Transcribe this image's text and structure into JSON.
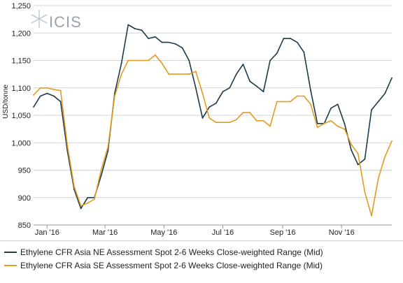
{
  "logo": {
    "text": "ICIS",
    "icon": "icis-sparkle-logo"
  },
  "chart_data": {
    "type": "line",
    "ylabel": "USD/tonne",
    "ylim": [
      850,
      1250
    ],
    "yticks": [
      850,
      900,
      950,
      1000,
      1050,
      1100,
      1150,
      1200,
      1250
    ],
    "ytick_labels": [
      "850",
      "900",
      "950",
      "1,000",
      "1,050",
      "1,100",
      "1,150",
      "1,200",
      "1,250"
    ],
    "x_start": "2015-12-18",
    "x_end": "2016-12-23",
    "xticks": [
      {
        "label": "Jan '16",
        "date": "2016-01-01"
      },
      {
        "label": "Mar '16",
        "date": "2016-03-01"
      },
      {
        "label": "May '16",
        "date": "2016-05-01"
      },
      {
        "label": "Jul '16",
        "date": "2016-07-01"
      },
      {
        "label": "Sep '16",
        "date": "2016-09-01"
      },
      {
        "label": "Nov '16",
        "date": "2016-11-01"
      }
    ],
    "grid": true,
    "legend_position": "bottom",
    "series": [
      {
        "name": "Ethylene CFR Asia NE Assessment Spot 2-6 Weeks Close-weighted Range (Mid)",
        "color": "#1d3a4a",
        "points": [
          [
            "2015-12-18",
            1065
          ],
          [
            "2015-12-25",
            1085
          ],
          [
            "2016-01-01",
            1090
          ],
          [
            "2016-01-08",
            1085
          ],
          [
            "2016-01-15",
            1075
          ],
          [
            "2016-01-22",
            985
          ],
          [
            "2016-01-29",
            915
          ],
          [
            "2016-02-05",
            880
          ],
          [
            "2016-02-12",
            900
          ],
          [
            "2016-02-19",
            900
          ],
          [
            "2016-02-26",
            940
          ],
          [
            "2016-03-04",
            985
          ],
          [
            "2016-03-11",
            1090
          ],
          [
            "2016-03-18",
            1145
          ],
          [
            "2016-03-25",
            1215
          ],
          [
            "2016-04-01",
            1208
          ],
          [
            "2016-04-08",
            1205
          ],
          [
            "2016-04-15",
            1190
          ],
          [
            "2016-04-22",
            1193
          ],
          [
            "2016-04-29",
            1183
          ],
          [
            "2016-05-06",
            1183
          ],
          [
            "2016-05-13",
            1180
          ],
          [
            "2016-05-20",
            1173
          ],
          [
            "2016-05-27",
            1150
          ],
          [
            "2016-06-03",
            1100
          ],
          [
            "2016-06-10",
            1045
          ],
          [
            "2016-06-17",
            1065
          ],
          [
            "2016-06-24",
            1072
          ],
          [
            "2016-07-01",
            1093
          ],
          [
            "2016-07-08",
            1100
          ],
          [
            "2016-07-15",
            1125
          ],
          [
            "2016-07-22",
            1143
          ],
          [
            "2016-07-29",
            1112
          ],
          [
            "2016-08-05",
            1103
          ],
          [
            "2016-08-12",
            1093
          ],
          [
            "2016-08-19",
            1150
          ],
          [
            "2016-08-26",
            1163
          ],
          [
            "2016-09-02",
            1190
          ],
          [
            "2016-09-09",
            1190
          ],
          [
            "2016-09-16",
            1183
          ],
          [
            "2016-09-23",
            1165
          ],
          [
            "2016-09-30",
            1095
          ],
          [
            "2016-10-07",
            1035
          ],
          [
            "2016-10-14",
            1035
          ],
          [
            "2016-10-21",
            1063
          ],
          [
            "2016-10-28",
            1070
          ],
          [
            "2016-11-04",
            1035
          ],
          [
            "2016-11-11",
            987
          ],
          [
            "2016-11-18",
            960
          ],
          [
            "2016-11-25",
            970
          ],
          [
            "2016-12-02",
            1060
          ],
          [
            "2016-12-09",
            1075
          ],
          [
            "2016-12-16",
            1090
          ],
          [
            "2016-12-23",
            1118
          ]
        ]
      },
      {
        "name": "Ethylene CFR Asia SE Assessment Spot 2-6 Weeks Close-weighted Range (Mid)",
        "color": "#e39b1f",
        "points": [
          [
            "2015-12-18",
            1087
          ],
          [
            "2015-12-25",
            1100
          ],
          [
            "2016-01-01",
            1100
          ],
          [
            "2016-01-08",
            1097
          ],
          [
            "2016-01-15",
            1095
          ],
          [
            "2016-01-22",
            995
          ],
          [
            "2016-01-29",
            920
          ],
          [
            "2016-02-05",
            885
          ],
          [
            "2016-02-12",
            890
          ],
          [
            "2016-02-19",
            897
          ],
          [
            "2016-02-26",
            950
          ],
          [
            "2016-03-04",
            992
          ],
          [
            "2016-03-11",
            1085
          ],
          [
            "2016-03-18",
            1125
          ],
          [
            "2016-03-25",
            1150
          ],
          [
            "2016-04-01",
            1150
          ],
          [
            "2016-04-08",
            1150
          ],
          [
            "2016-04-15",
            1150
          ],
          [
            "2016-04-22",
            1160
          ],
          [
            "2016-04-29",
            1145
          ],
          [
            "2016-05-06",
            1125
          ],
          [
            "2016-05-13",
            1125
          ],
          [
            "2016-05-20",
            1125
          ],
          [
            "2016-05-27",
            1125
          ],
          [
            "2016-06-03",
            1130
          ],
          [
            "2016-06-10",
            1090
          ],
          [
            "2016-06-17",
            1045
          ],
          [
            "2016-06-24",
            1037
          ],
          [
            "2016-07-01",
            1037
          ],
          [
            "2016-07-08",
            1037
          ],
          [
            "2016-07-15",
            1042
          ],
          [
            "2016-07-22",
            1055
          ],
          [
            "2016-07-29",
            1055
          ],
          [
            "2016-08-05",
            1040
          ],
          [
            "2016-08-12",
            1040
          ],
          [
            "2016-08-19",
            1030
          ],
          [
            "2016-08-26",
            1075
          ],
          [
            "2016-09-02",
            1075
          ],
          [
            "2016-09-09",
            1075
          ],
          [
            "2016-09-16",
            1085
          ],
          [
            "2016-09-23",
            1085
          ],
          [
            "2016-09-30",
            1070
          ],
          [
            "2016-10-07",
            1028
          ],
          [
            "2016-10-14",
            1035
          ],
          [
            "2016-10-21",
            1040
          ],
          [
            "2016-10-28",
            1030
          ],
          [
            "2016-11-04",
            1025
          ],
          [
            "2016-11-11",
            997
          ],
          [
            "2016-11-18",
            980
          ],
          [
            "2016-11-25",
            910
          ],
          [
            "2016-12-02",
            867
          ],
          [
            "2016-12-09",
            935
          ],
          [
            "2016-12-16",
            975
          ],
          [
            "2016-12-23",
            1003
          ]
        ]
      }
    ]
  }
}
